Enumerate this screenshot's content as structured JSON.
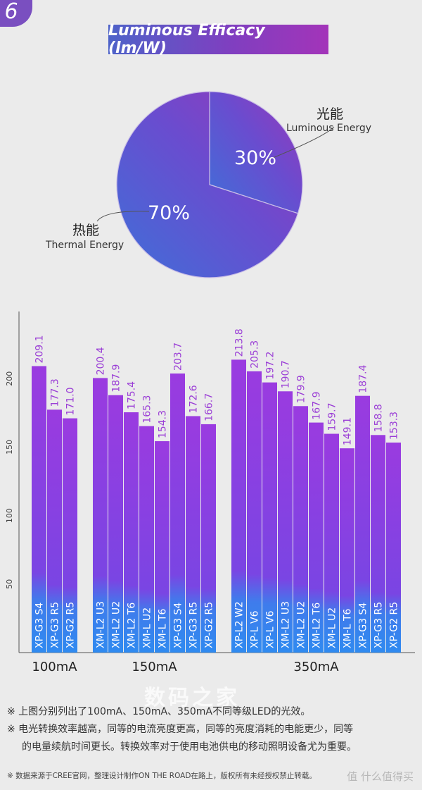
{
  "badge": "6",
  "title": "Luminous Efficacy (lm/W)",
  "pie": {
    "slices": [
      {
        "label_cn": "光能",
        "label_en": "Luminous Energy",
        "value": 30,
        "display": "30%"
      },
      {
        "label_cn": "热能",
        "label_en": "Thermal Energy",
        "value": 70,
        "display": "70%"
      }
    ]
  },
  "chart_data": {
    "type": "bar",
    "title": "Luminous Efficacy (lm/W)",
    "ylabel": "",
    "ylim": [
      0,
      240
    ],
    "yticks": [
      50,
      100,
      150,
      200
    ],
    "groups": [
      {
        "label": "100mA",
        "bars": [
          {
            "name": "XP-G3 S4",
            "value": 209.1,
            "label": "209.1"
          },
          {
            "name": "XP-G3 R5",
            "value": 177.3,
            "label": "177.3"
          },
          {
            "name": "XP-G2 R5",
            "value": 171.0,
            "label": "171.0"
          }
        ]
      },
      {
        "label": "150mA",
        "bars": [
          {
            "name": "XM-L2 U3",
            "value": 200.4,
            "label": "200.4"
          },
          {
            "name": "XM-L2 U2",
            "value": 187.9,
            "label": "187.9"
          },
          {
            "name": "XM-L2 T6",
            "value": 175.4,
            "label": "175.4"
          },
          {
            "name": "XM-L U2",
            "value": 165.3,
            "label": "165.3"
          },
          {
            "name": "XM-L T6",
            "value": 154.3,
            "label": "154.3"
          },
          {
            "name": "XP-G3 S4",
            "value": 203.7,
            "label": "203.7"
          },
          {
            "name": "XP-G3 R5",
            "value": 172.6,
            "label": "172.6"
          },
          {
            "name": "XP-G2 R5",
            "value": 166.7,
            "label": "166.7"
          }
        ]
      },
      {
        "label": "350mA",
        "bars": [
          {
            "name": "XP-L2 W2",
            "value": 213.8,
            "label": "213.8"
          },
          {
            "name": "XP-L V6",
            "value": 205.3,
            "label": "205.3"
          },
          {
            "name": "XP-L V6",
            "value": 197.2,
            "label": "197.2"
          },
          {
            "name": "XM-L2 U3",
            "value": 190.7,
            "label": "190.7"
          },
          {
            "name": "XM-L2 U2",
            "value": 179.9,
            "label": "179.9"
          },
          {
            "name": "XM-L2 T6",
            "value": 167.9,
            "label": "167.9"
          },
          {
            "name": "XM-L U2",
            "value": 159.7,
            "label": "159.7"
          },
          {
            "name": "XM-L T6",
            "value": 149.1,
            "label": "149.1"
          },
          {
            "name": "XP-G3 S4",
            "value": 187.4,
            "label": "187.4"
          },
          {
            "name": "XP-G3 R5",
            "value": 158.8,
            "label": "158.8"
          },
          {
            "name": "XP-G2 R5",
            "value": 153.3,
            "label": "153.3"
          }
        ]
      }
    ]
  },
  "colors": {
    "bar_top": "#9a3be0",
    "bar_bottom": "#2f84ee",
    "value_label": "#9b3fd6",
    "pie_dark": "#4f5fd0",
    "pie_light": "#8b3cc0"
  },
  "notes": [
    "※ 上图分别列出了100mA、150mA、350mA不同等级LED的光效。",
    "※ 电光转换效率越高，同等的电流亮度更高，同等的亮度消耗的电能更少，同等",
    "的电量续航时间更长。转换效率对于使用电池供电的移动照明设备尤为重要。"
  ],
  "footer": "※ 数据来源于CREE官网，整理设计制作ON THE ROAD在路上，版权所有未经授权禁止转载。",
  "watermark": "值 什么值得买",
  "watermark_center": "数码之家"
}
